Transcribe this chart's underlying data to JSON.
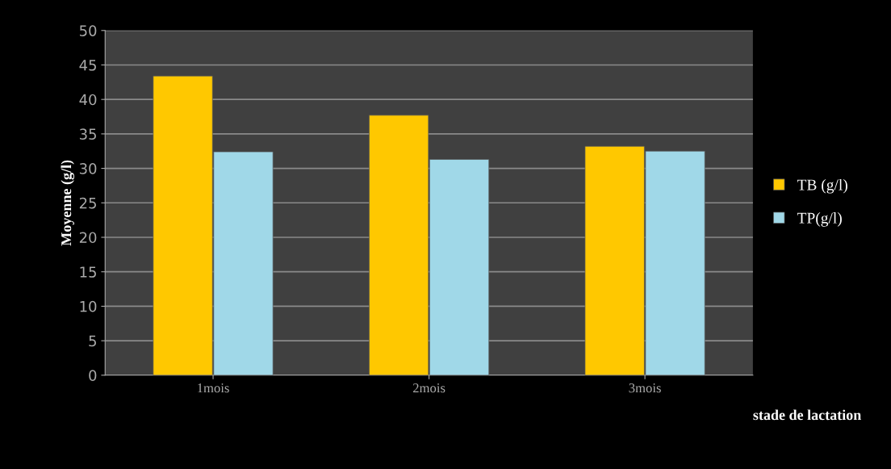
{
  "chart_data": {
    "type": "bar",
    "xlabel": "stade de lactation",
    "ylabel": "Moyenne (g/l)",
    "categories": [
      "1mois",
      "2mois",
      "3mois"
    ],
    "series": [
      {
        "name": "TB (g/l)",
        "color": "#ffc800",
        "values": [
          43.4,
          37.7,
          33.2
        ]
      },
      {
        "name": "TP(g/l)",
        "color": "#a0d8e8",
        "values": [
          32.4,
          31.3,
          32.5
        ]
      }
    ],
    "ylim": [
      0,
      50
    ],
    "yticks": [
      0,
      5,
      10,
      15,
      20,
      25,
      30,
      35,
      40,
      45,
      50
    ],
    "grid": "y",
    "legend": "right"
  }
}
